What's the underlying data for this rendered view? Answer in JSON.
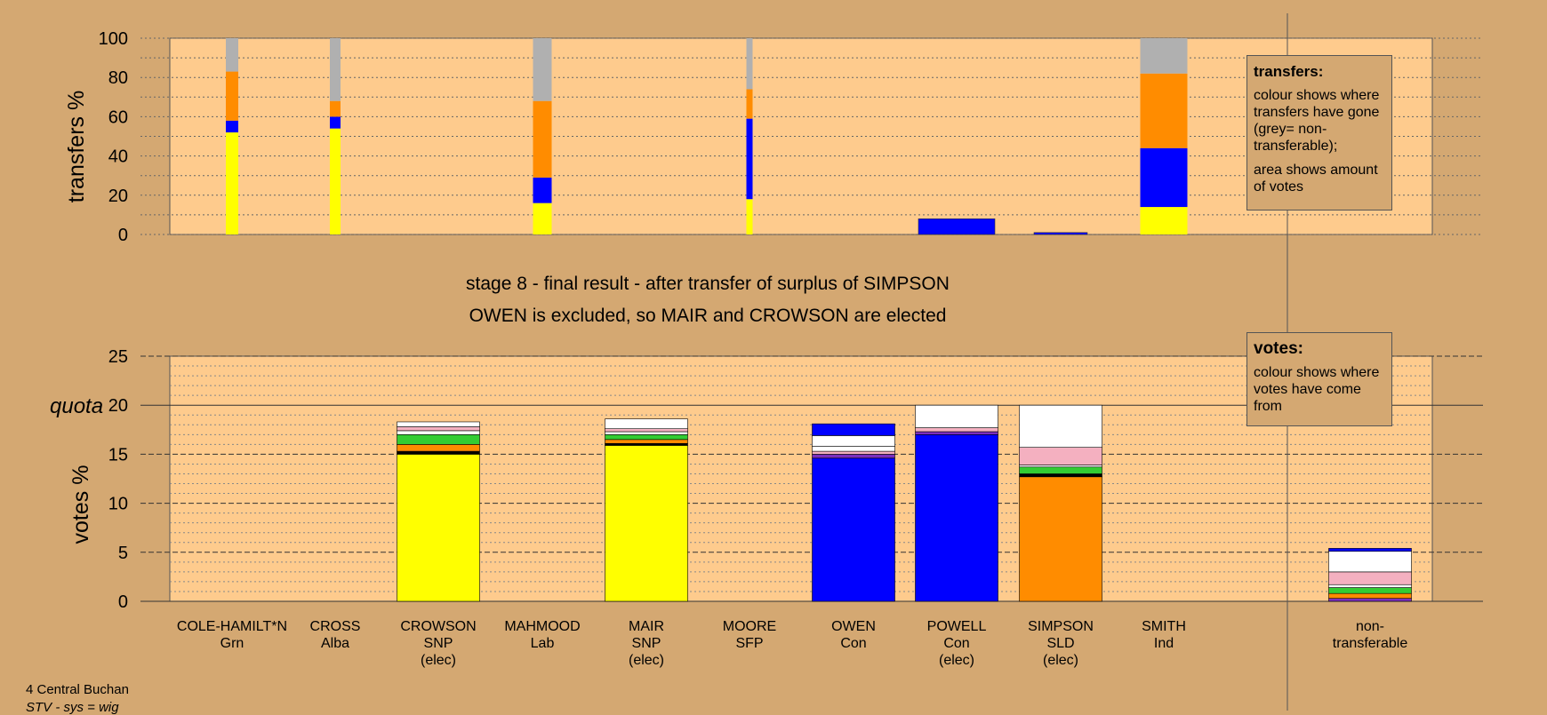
{
  "colors": {
    "background": "#d4a872",
    "plot_background": "#fecb8d",
    "yellow": "#ffff00",
    "blue": "#0000ff",
    "orange": "#ff8c00",
    "grey": "#b0b0b0",
    "white": "#ffffff",
    "pink": "#f4b0c0",
    "green": "#33cc33",
    "purple": "#7b2fbe",
    "black": "#000000"
  },
  "stage_text": {
    "line1": "stage 8 - final result - after transfer of surplus of SIMPSON",
    "line2": "OWEN is excluded, so MAIR and CROWSON are elected"
  },
  "transfers_legend": {
    "title": "transfers:",
    "para1": "colour shows where transfers have gone (grey= non-transferable);",
    "para2": "area shows amount of votes"
  },
  "votes_legend": {
    "title": "votes:",
    "para1": "colour shows where votes have come from"
  },
  "footer": {
    "place": "4 Central Buchan",
    "system": "STV - sys = wig"
  },
  "chart_data": [
    {
      "type": "bar",
      "title": "",
      "ylabel": "transfers %",
      "ylim": [
        0,
        100
      ],
      "yticks": [
        "0",
        "20",
        "40",
        "60",
        "80",
        "100"
      ],
      "bars": [
        {
          "candidate": "COLE-HAMILT*N",
          "segments": [
            {
              "color": "yellow",
              "value": 52
            },
            {
              "color": "blue",
              "value": 6
            },
            {
              "color": "orange",
              "value": 25
            },
            {
              "color": "grey",
              "value": 17
            }
          ]
        },
        {
          "candidate": "CROSS",
          "segments": [
            {
              "color": "yellow",
              "value": 54
            },
            {
              "color": "blue",
              "value": 6
            },
            {
              "color": "orange",
              "value": 8
            },
            {
              "color": "grey",
              "value": 32
            }
          ]
        },
        {
          "candidate": "MAHMOOD",
          "segments": [
            {
              "color": "yellow",
              "value": 16
            },
            {
              "color": "blue",
              "value": 13
            },
            {
              "color": "orange",
              "value": 39
            },
            {
              "color": "grey",
              "value": 32
            }
          ]
        },
        {
          "candidate": "MOORE",
          "segments": [
            {
              "color": "yellow",
              "value": 18
            },
            {
              "color": "blue",
              "value": 41
            },
            {
              "color": "orange",
              "value": 15
            },
            {
              "color": "grey",
              "value": 26
            }
          ]
        },
        {
          "candidate": "OWEN",
          "segments": []
        },
        {
          "candidate": "POWELL",
          "segments": [
            {
              "color": "blue",
              "value": 8
            }
          ]
        },
        {
          "candidate": "SIMPSON",
          "segments": [
            {
              "color": "blue",
              "value": 1
            }
          ]
        },
        {
          "candidate": "SMITH",
          "segments": [
            {
              "color": "yellow",
              "value": 14
            },
            {
              "color": "blue",
              "value": 30
            },
            {
              "color": "orange",
              "value": 38
            },
            {
              "color": "grey",
              "value": 18
            }
          ]
        }
      ]
    },
    {
      "type": "bar",
      "title": "",
      "ylabel": "votes %",
      "ylim": [
        0,
        25
      ],
      "yticks": [
        "0",
        "5",
        "10",
        "15",
        "20",
        "25"
      ],
      "quota": 20,
      "quota_label": "quota",
      "categories": [
        {
          "name": "COLE-HAMILT*N",
          "party": "Grn",
          "status": ""
        },
        {
          "name": "CROSS",
          "party": "Alba",
          "status": ""
        },
        {
          "name": "CROWSON",
          "party": "SNP",
          "status": "(elec)"
        },
        {
          "name": "MAHMOOD",
          "party": "Lab",
          "status": ""
        },
        {
          "name": "MAIR",
          "party": "SNP",
          "status": "(elec)"
        },
        {
          "name": "MOORE",
          "party": "SFP",
          "status": ""
        },
        {
          "name": "OWEN",
          "party": "Con",
          "status": ""
        },
        {
          "name": "POWELL",
          "party": "Con",
          "status": "(elec)"
        },
        {
          "name": "SIMPSON",
          "party": "SLD",
          "status": "(elec)"
        },
        {
          "name": "SMITH",
          "party": "Ind",
          "status": ""
        },
        {
          "name": "non-",
          "party": "transferable",
          "status": ""
        }
      ],
      "series_stacks": [
        [],
        [],
        [
          {
            "color": "yellow",
            "value": 15.0
          },
          {
            "color": "black",
            "value": 0.3
          },
          {
            "color": "orange",
            "value": 0.7
          },
          {
            "color": "green",
            "value": 1.0
          },
          {
            "color": "white",
            "value": 0.4
          },
          {
            "color": "pink",
            "value": 0.4
          },
          {
            "color": "white",
            "value": 0.5
          }
        ],
        [],
        [
          {
            "color": "yellow",
            "value": 15.9
          },
          {
            "color": "black",
            "value": 0.2
          },
          {
            "color": "orange",
            "value": 0.4
          },
          {
            "color": "green",
            "value": 0.5
          },
          {
            "color": "white",
            "value": 0.3
          },
          {
            "color": "pink",
            "value": 0.3
          },
          {
            "color": "white",
            "value": 1.0
          }
        ],
        [],
        [
          {
            "color": "blue",
            "value": 14.6
          },
          {
            "color": "purple",
            "value": 0.4
          },
          {
            "color": "pink",
            "value": 0.3
          },
          {
            "color": "white",
            "value": 0.5
          },
          {
            "color": "white",
            "value": 1.1
          },
          {
            "color": "blue",
            "value": 1.2
          }
        ],
        [
          {
            "color": "blue",
            "value": 17.0
          },
          {
            "color": "purple",
            "value": 0.3
          },
          {
            "color": "pink",
            "value": 0.4
          },
          {
            "color": "white",
            "value": 2.3
          }
        ],
        [
          {
            "color": "orange",
            "value": 12.7
          },
          {
            "color": "black",
            "value": 0.3
          },
          {
            "color": "green",
            "value": 0.7
          },
          {
            "color": "white",
            "value": 0.2
          },
          {
            "color": "pink",
            "value": 1.8
          },
          {
            "color": "white",
            "value": 4.3
          }
        ],
        [],
        [
          {
            "color": "purple",
            "value": 0.3
          },
          {
            "color": "orange",
            "value": 0.5
          },
          {
            "color": "green",
            "value": 0.6
          },
          {
            "color": "white",
            "value": 0.3
          },
          {
            "color": "pink",
            "value": 1.3
          },
          {
            "color": "white",
            "value": 2.1
          },
          {
            "color": "blue",
            "value": 0.3
          }
        ]
      ]
    }
  ]
}
